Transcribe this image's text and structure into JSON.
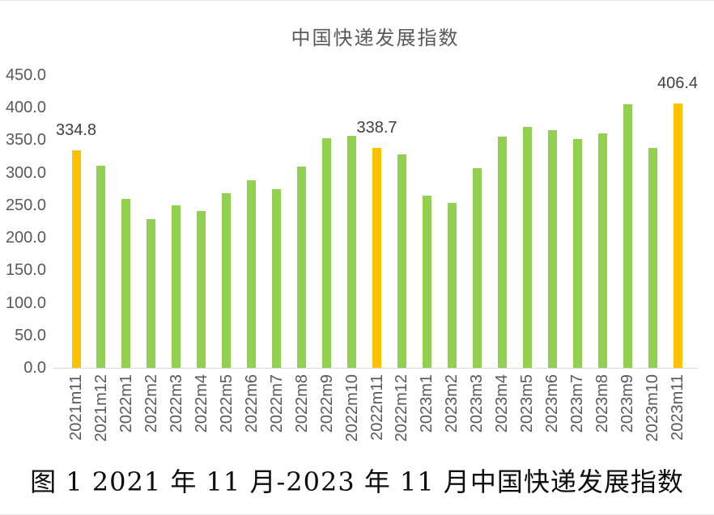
{
  "page": {
    "caption": "图 1 2021 年 11 月-2023 年 11 月中国快递发展指数"
  },
  "chart_data": {
    "type": "bar",
    "title": "中国快递发展指数",
    "categories": [
      "2021m11",
      "2021m12",
      "2022m1",
      "2022m2",
      "2022m3",
      "2022m4",
      "2022m5",
      "2022m6",
      "2022m7",
      "2022m8",
      "2022m9",
      "2022m10",
      "2022m11",
      "2022m12",
      "2023m1",
      "2023m2",
      "2023m3",
      "2023m4",
      "2023m5",
      "2023m6",
      "2023m7",
      "2023m8",
      "2023m9",
      "2023m10",
      "2023m11"
    ],
    "values": [
      334.8,
      311,
      260,
      229,
      250,
      241,
      268,
      289,
      275,
      310,
      353,
      357,
      338.7,
      328,
      265,
      253,
      307,
      356,
      371,
      366,
      352,
      361,
      405,
      338,
      406.4
    ],
    "highlighted_indices": [
      0,
      12,
      24
    ],
    "data_labels": [
      {
        "index": 0,
        "text": "334.8"
      },
      {
        "index": 12,
        "text": "338.7"
      },
      {
        "index": 24,
        "text": "406.4"
      }
    ],
    "xlabel": "",
    "ylabel": "",
    "ylim": [
      0,
      450
    ],
    "ytick_step": 50,
    "ytick_labels": [
      "0.0",
      "50.0",
      "100.0",
      "150.0",
      "200.0",
      "250.0",
      "300.0",
      "350.0",
      "400.0",
      "450.0"
    ],
    "grid": false,
    "legend": "none",
    "colors": {
      "bar_default": "#92D050",
      "bar_highlight": "#FFC000",
      "axis_text": "#595959",
      "data_label": "#404040",
      "axis_line": "#D9D9D9",
      "title_text": "#595959",
      "caption_text": "#0D0D0D"
    }
  }
}
